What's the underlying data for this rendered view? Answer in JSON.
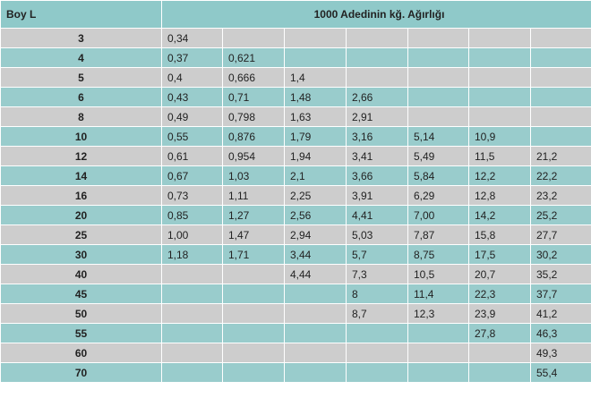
{
  "table": {
    "header_boy": "Boy  L",
    "header_weight": "1000 Adedinin kğ. Ağırlığı",
    "rows": [
      {
        "boy": "3",
        "values": [
          "0,34",
          "",
          "",
          "",
          "",
          "",
          ""
        ]
      },
      {
        "boy": "4",
        "values": [
          "0,37",
          "0,621",
          "",
          "",
          "",
          "",
          ""
        ]
      },
      {
        "boy": "5",
        "values": [
          "0,4",
          "0,666",
          "1,4",
          "",
          "",
          "",
          ""
        ]
      },
      {
        "boy": "6",
        "values": [
          "0,43",
          "0,71",
          "1,48",
          "2,66",
          "",
          "",
          ""
        ]
      },
      {
        "boy": "8",
        "values": [
          "0,49",
          "0,798",
          "1,63",
          "2,91",
          "",
          "",
          ""
        ]
      },
      {
        "boy": "10",
        "values": [
          "0,55",
          "0,876",
          "1,79",
          "3,16",
          "5,14",
          "10,9",
          ""
        ]
      },
      {
        "boy": "12",
        "values": [
          "0,61",
          "0,954",
          "1,94",
          "3,41",
          "5,49",
          "11,5",
          "21,2"
        ]
      },
      {
        "boy": "14",
        "values": [
          "0,67",
          "1,03",
          "2,1",
          "3,66",
          "5,84",
          "12,2",
          "22,2"
        ]
      },
      {
        "boy": "16",
        "values": [
          "0,73",
          "1,11",
          "2,25",
          "3,91",
          "6,29",
          "12,8",
          "23,2"
        ]
      },
      {
        "boy": "20",
        "values": [
          "0,85",
          "1,27",
          "2,56",
          "4,41",
          "7,00",
          "14,2",
          "25,2"
        ]
      },
      {
        "boy": "25",
        "values": [
          "1,00",
          "1,47",
          "2,94",
          "5,03",
          "7,87",
          "15,8",
          "27,7"
        ]
      },
      {
        "boy": "30",
        "values": [
          "1,18",
          "1,71",
          "3,44",
          "5,7",
          "8,75",
          "17,5",
          "30,2"
        ]
      },
      {
        "boy": "40",
        "values": [
          "",
          "",
          "4,44",
          "7,3",
          "10,5",
          "20,7",
          "35,2"
        ]
      },
      {
        "boy": "45",
        "values": [
          "",
          "",
          "",
          "8",
          "11,4",
          "22,3",
          "37,7"
        ]
      },
      {
        "boy": "50",
        "values": [
          "",
          "",
          "",
          "8,7",
          "12,3",
          "23,9",
          "41,2"
        ]
      },
      {
        "boy": "55",
        "values": [
          "",
          "",
          "",
          "",
          "",
          "27,8",
          "46,3"
        ]
      },
      {
        "boy": "60",
        "values": [
          "",
          "",
          "",
          "",
          "",
          "",
          "49,3"
        ]
      },
      {
        "boy": "70",
        "values": [
          "",
          "",
          "",
          "",
          "",
          "",
          "55,4"
        ]
      }
    ]
  },
  "colors": {
    "header_bg": "#8fc9c9",
    "row_gray": "#cdcdcd",
    "row_teal": "#99cccc",
    "text": "#222222"
  }
}
